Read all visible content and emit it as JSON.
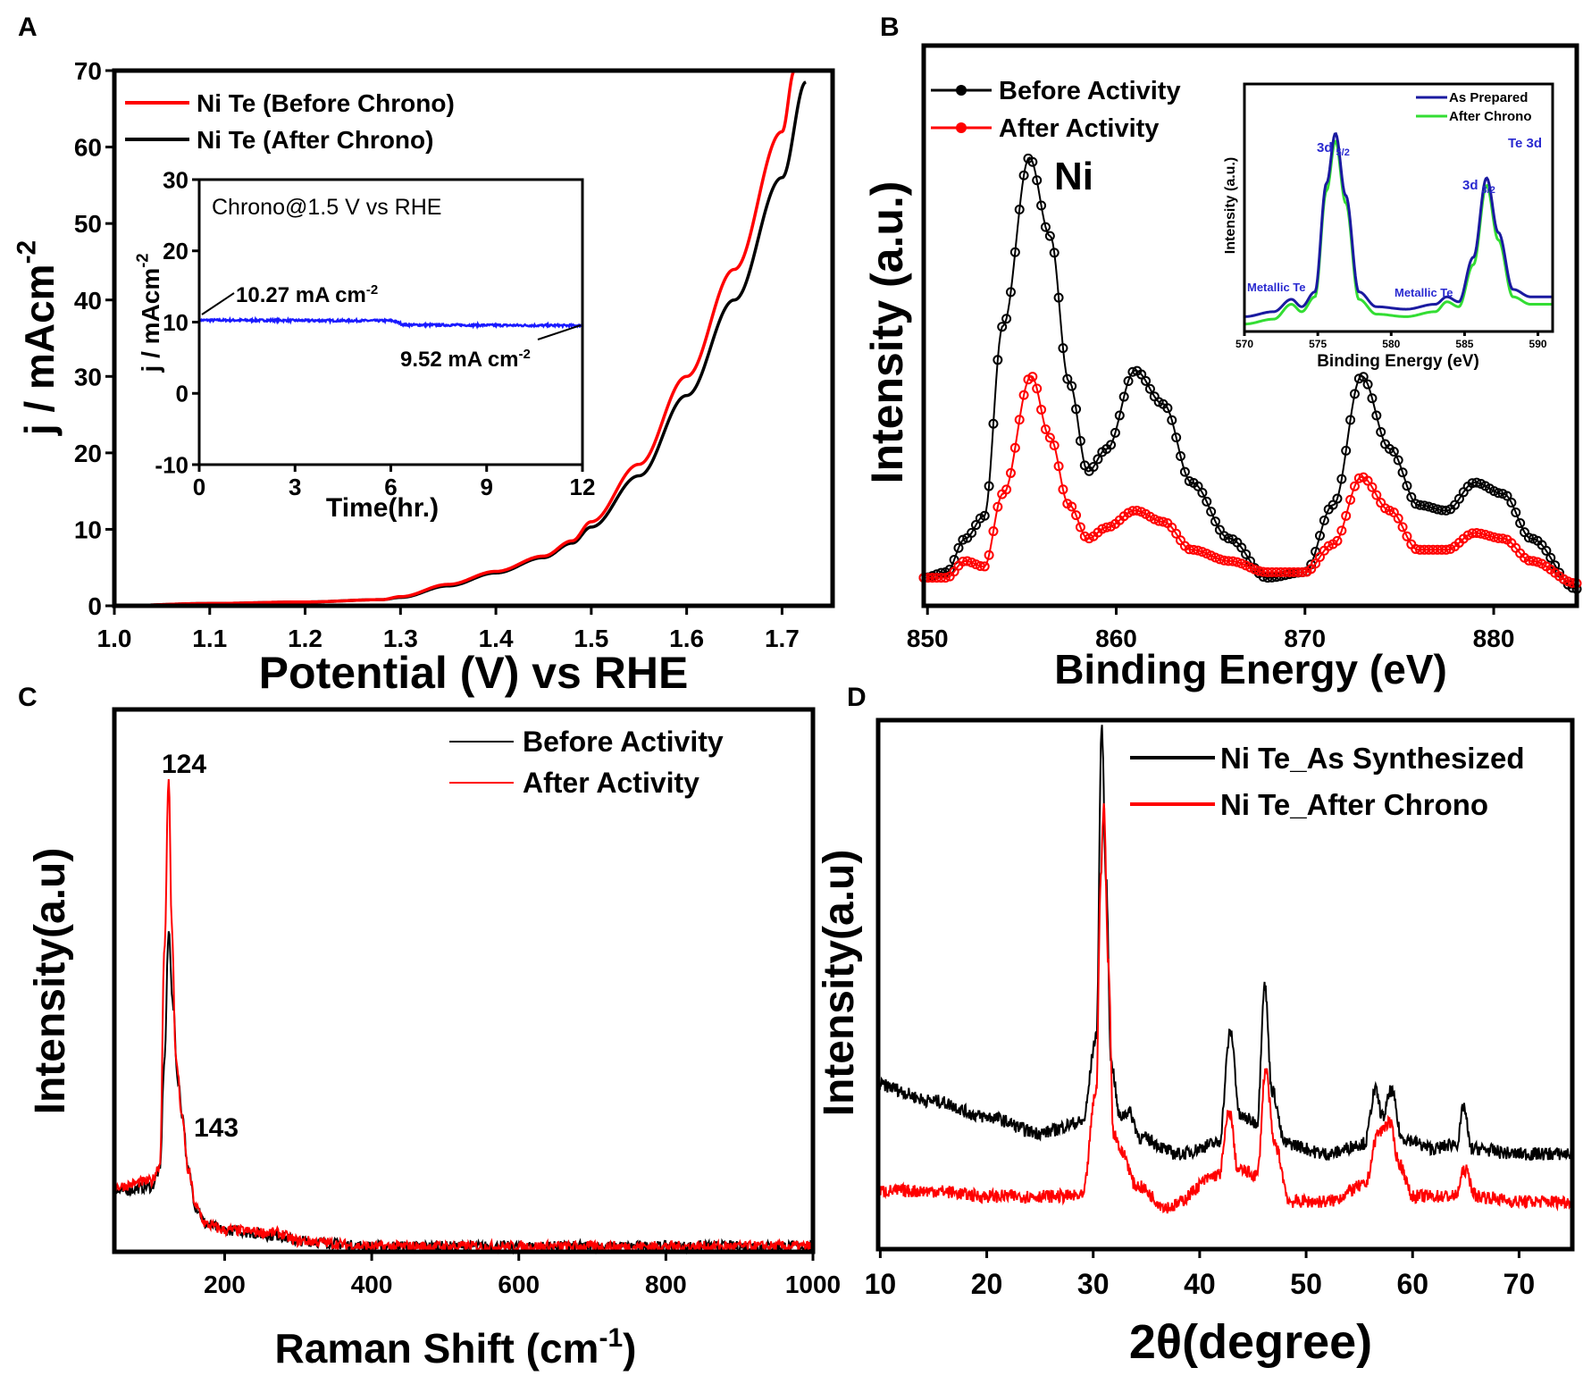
{
  "panel_labels": [
    "A",
    "B",
    "C",
    "D"
  ],
  "chart_data": [
    {
      "id": "A",
      "type": "line",
      "xlabel": "Potential (V) vs RHE",
      "ylabel": "j / mAcm",
      "ylabel_sup": "-2",
      "xlim": [
        1.0,
        1.753
      ],
      "ylim": [
        0,
        70
      ],
      "xticks": [
        "1.0",
        "1.1",
        "1.2",
        "1.3",
        "1.4",
        "1.5",
        "1.6",
        "1.7"
      ],
      "yticks": [
        "0",
        "10",
        "20",
        "30",
        "40",
        "50",
        "60",
        "70"
      ],
      "legend_position": "top-left",
      "series": [
        {
          "name": "Ni Te (Before Chrono)",
          "color": "#ff0000",
          "x": [
            1.0,
            1.1,
            1.2,
            1.28,
            1.3,
            1.35,
            1.4,
            1.45,
            1.48,
            1.5,
            1.55,
            1.6,
            1.65,
            1.7,
            1.713
          ],
          "y": [
            0,
            0.3,
            0.5,
            0.8,
            1.2,
            2.8,
            4.5,
            6.5,
            8.5,
            11,
            18.5,
            30,
            44,
            62,
            70
          ]
        },
        {
          "name": "Ni Te (After Chrono)",
          "color": "#000000",
          "x": [
            1.0,
            1.1,
            1.2,
            1.28,
            1.3,
            1.35,
            1.4,
            1.45,
            1.48,
            1.5,
            1.55,
            1.6,
            1.65,
            1.7,
            1.725
          ],
          "y": [
            0,
            0.3,
            0.5,
            0.8,
            1.1,
            2.6,
            4.3,
            6.3,
            8.2,
            10.3,
            17,
            27.5,
            40,
            56,
            68.5
          ]
        }
      ],
      "inset": {
        "type": "line",
        "title": "Chrono@1.5 V vs RHE",
        "xlabel": "Time(hr.)",
        "ylabel": "j / mAcm",
        "ylabel_sup": "-2",
        "xlim": [
          0,
          12
        ],
        "ylim": [
          -10,
          30
        ],
        "xticks": [
          "0",
          "3",
          "6",
          "9",
          "12"
        ],
        "yticks": [
          "-10",
          "0",
          "10",
          "20",
          "30"
        ],
        "series": [
          {
            "name": "chrono",
            "color": "#1a1aff",
            "x": [
              0,
              6,
              6.5,
              12
            ],
            "y": [
              10.27,
              10.2,
              9.6,
              9.52
            ]
          }
        ],
        "annotations": [
          {
            "text": "10.27 mA cm",
            "sup": "-2"
          },
          {
            "text": "9.52 mA cm",
            "sup": "-2"
          }
        ]
      }
    },
    {
      "id": "B",
      "type": "scatter-line",
      "xlabel": "Binding Energy (eV)",
      "ylabel": "Intensity (a.u.)",
      "xlim": [
        849.8,
        884.4
      ],
      "ylim": [
        0,
        100
      ],
      "xticks": [
        "850",
        "860",
        "870",
        "880"
      ],
      "annotation": "Ni",
      "legend_position": "top-left",
      "series": [
        {
          "name": "Before Activity",
          "color": "#000000",
          "x": [
            849.8,
            851,
            852,
            853,
            854,
            855.4,
            856.5,
            857.5,
            858.5,
            859.5,
            861,
            862.5,
            864,
            866,
            868,
            870,
            871.5,
            873,
            874.5,
            876,
            877.5,
            879,
            880.5,
            882,
            884.4
          ],
          "y": [
            5,
            6,
            12,
            16,
            50,
            80,
            66,
            40,
            24,
            28,
            42,
            36,
            22,
            12,
            5,
            6,
            18,
            41,
            28,
            18,
            17,
            22,
            20,
            12,
            3
          ]
        },
        {
          "name": "After Activity",
          "color": "#ff0000",
          "x": [
            849.8,
            851,
            852,
            853,
            854,
            855.5,
            856.5,
            857.5,
            858.5,
            859.5,
            861,
            862.5,
            864,
            866,
            868,
            870,
            871.5,
            873,
            874.5,
            876,
            877.5,
            879,
            880.5,
            882,
            884.4
          ],
          "y": [
            5,
            5,
            8,
            7,
            20,
            41,
            30,
            18,
            12,
            14,
            17,
            15,
            10,
            8,
            6,
            6,
            11,
            23,
            17,
            10,
            10,
            13,
            12,
            8,
            4
          ]
        }
      ],
      "inset": {
        "type": "line",
        "xlabel": "Binding Energy (eV)",
        "ylabel": "Intensity (a.u.)",
        "xlim": [
          570,
          591
        ],
        "ylim": [
          0,
          100
        ],
        "xticks": [
          "570",
          "575",
          "580",
          "585",
          "590"
        ],
        "label": "Te 3d",
        "peak_labels": [
          {
            "text": "3d",
            "sub": "5/2"
          },
          {
            "text": "3d",
            "sub": "3/2"
          },
          {
            "text": "Metallic Te"
          },
          {
            "text": "Metallic Te"
          }
        ],
        "series": [
          {
            "name": "As Prepared",
            "color": "#1a1aa0",
            "x": [
              570,
              572,
              573.2,
              573.9,
              574.8,
              575.6,
              576.2,
              576.9,
              577.8,
              579,
              581,
              583,
              583.8,
              584.6,
              585.6,
              586.5,
              587.3,
              588.3,
              589.5,
              591
            ],
            "y": [
              6,
              8,
              13,
              10,
              16,
              60,
              80,
              55,
              16,
              10,
              9,
              11,
              14,
              12,
              30,
              62,
              40,
              17,
              14,
              14
            ]
          },
          {
            "name": "After Chrono",
            "color": "#33dd33",
            "x": [
              570,
              572,
              573.2,
              573.9,
              574.8,
              575.6,
              576.2,
              576.9,
              577.8,
              579,
              581,
              583,
              583.8,
              584.6,
              585.6,
              586.5,
              587.3,
              588.3,
              589.5,
              591
            ],
            "y": [
              3,
              5,
              11,
              8,
              14,
              57,
              77,
              52,
              13,
              7,
              6,
              8,
              12,
              10,
              27,
              59,
              37,
              14,
              11,
              11
            ]
          }
        ]
      }
    },
    {
      "id": "C",
      "type": "line",
      "xlabel": "Raman Shift (cm",
      "xlabel_sup": "-1",
      "xlabel_end": ")",
      "ylabel": "Intensity(a.u)",
      "xlim": [
        50,
        1000
      ],
      "ylim": [
        0,
        100
      ],
      "xticks": [
        "200",
        "400",
        "600",
        "800",
        "1000"
      ],
      "peak_labels": [
        "124",
        "143"
      ],
      "legend_position": "top-right",
      "series": [
        {
          "name": "Before Activity",
          "color": "#000000",
          "x": [
            50,
            100,
            112,
            118,
            124,
            130,
            136,
            143,
            150,
            162,
            175,
            200,
            270,
            300,
            400,
            1000
          ],
          "y": [
            11,
            12,
            15,
            35,
            59,
            45,
            32,
            25,
            15,
            8,
            5,
            4,
            3,
            2,
            1,
            1
          ]
        },
        {
          "name": "After Activity",
          "color": "#ff0000",
          "x": [
            50,
            100,
            112,
            118,
            124,
            128,
            134,
            143,
            150,
            162,
            175,
            200,
            270,
            300,
            400,
            1000
          ],
          "y": [
            12,
            13,
            16,
            55,
            88,
            60,
            35,
            24,
            15,
            8,
            5,
            4,
            3.5,
            2,
            1,
            1
          ]
        }
      ]
    },
    {
      "id": "D",
      "type": "line",
      "xlabel": "2θ(degree)",
      "xlabel_theta": "θ",
      "xlabel_pre": "2",
      "xlabel_post": "(degree)",
      "ylabel": "Intensity(a.u)",
      "xlim": [
        9.8,
        75
      ],
      "ylim": [
        0,
        100
      ],
      "xticks": [
        "10",
        "20",
        "30",
        "40",
        "50",
        "60",
        "70"
      ],
      "legend_position": "top-right",
      "series": [
        {
          "name": "Ni Te_As Synthesized",
          "color": "#000000",
          "x": [
            9.8,
            15,
            20,
            25,
            29,
            30.3,
            30.8,
            31.2,
            31.7,
            32.5,
            33.3,
            34.5,
            38,
            41.8,
            42.9,
            43.8,
            45.4,
            46.1,
            46.8,
            48,
            52,
            55.5,
            56.5,
            57.2,
            58,
            59,
            62,
            64.2,
            64.8,
            65.5,
            70,
            75
          ],
          "y": [
            31,
            28,
            25,
            22,
            24,
            40,
            99,
            70,
            35,
            25,
            26,
            21,
            18,
            20,
            41,
            25,
            24,
            50,
            30,
            20,
            18,
            20,
            30,
            25,
            30,
            21,
            19,
            20,
            27,
            19,
            18,
            18
          ]
        },
        {
          "name": "Ni Te_After Chrono",
          "color": "#ff0000",
          "x": [
            9.8,
            15,
            20,
            25,
            29,
            30.3,
            30.7,
            31,
            31.4,
            31.9,
            32.8,
            34,
            37,
            41.8,
            42.8,
            43.6,
            45.4,
            46.2,
            47,
            48.5,
            52,
            55.5,
            56.8,
            57.8,
            58.8,
            60,
            64,
            64.9,
            66,
            70,
            75
          ],
          "y": [
            11,
            11,
            10,
            10,
            10,
            30,
            70,
            84,
            55,
            22,
            18,
            12,
            8,
            14,
            26,
            15,
            14,
            34,
            20,
            9,
            9,
            12,
            22,
            24,
            16,
            10,
            10,
            15,
            10,
            9,
            9
          ]
        }
      ]
    }
  ]
}
